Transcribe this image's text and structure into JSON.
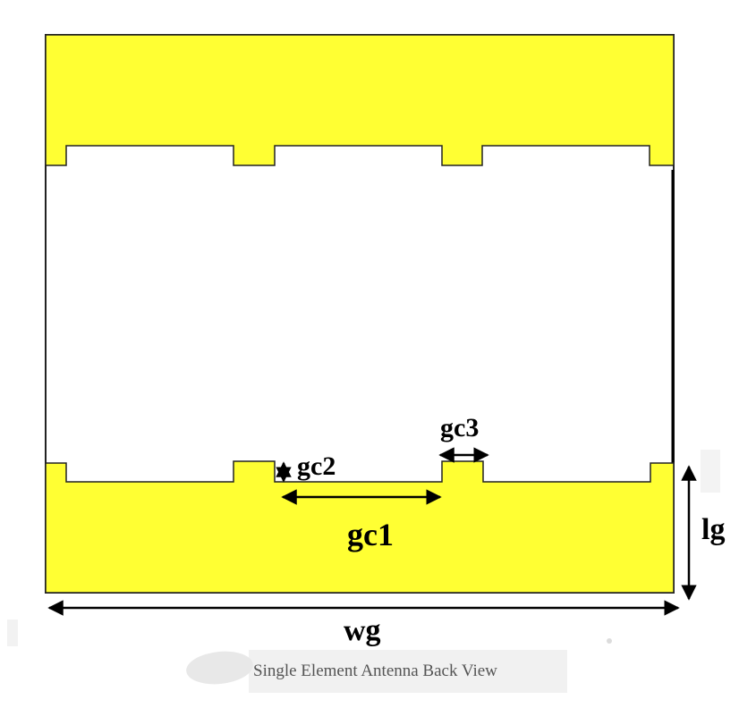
{
  "labels": {
    "gc1": "gc1",
    "gc2": "gc2",
    "gc3": "gc3",
    "lg": "lg",
    "wg": "wg"
  },
  "caption": "Single Element Antenna Back View",
  "colors": {
    "ground_plane": "#ffff33",
    "outline": "#222222",
    "substrate": "#ffffff",
    "dimension_line": "#000000",
    "caption_text": "#555555"
  }
}
